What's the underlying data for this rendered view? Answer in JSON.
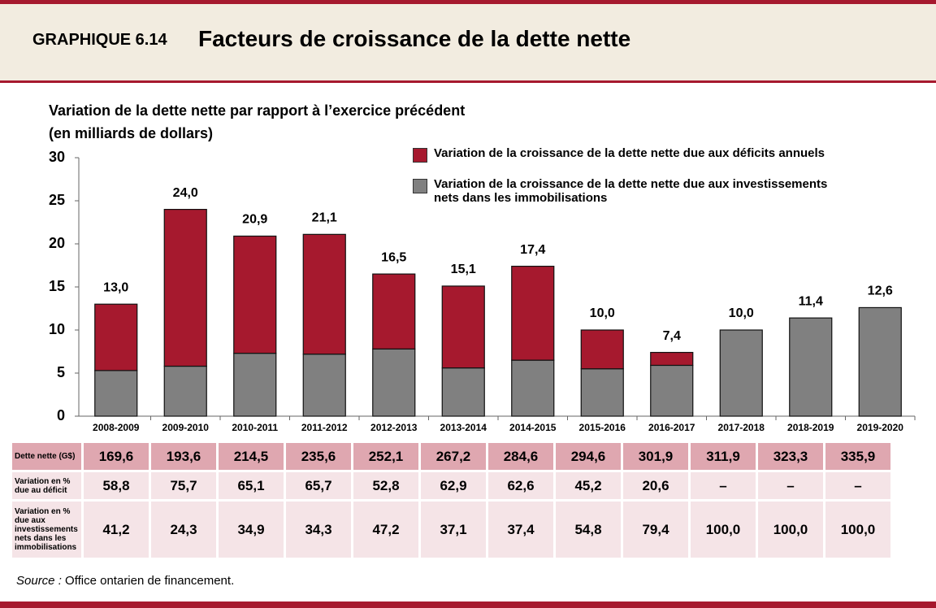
{
  "header": {
    "label": "GRAPHIQUE 6.14",
    "title": "Facteurs de croissance de la dette nette"
  },
  "chart_data": {
    "type": "stacked-bar",
    "y_title": [
      "Variation de la dette nette par rapport à l’exercice précédent",
      "(en milliards de dollars)"
    ],
    "categories": [
      "2008-2009",
      "2009-2010",
      "2010-2011",
      "2011-2012",
      "2012-2013",
      "2013-2014",
      "2014-2015",
      "2015-2016",
      "2016-2017",
      "2017-2018",
      "2018-2019",
      "2019-2020"
    ],
    "series": [
      {
        "name": "Variation de la croissance de la dette nette due aux déficits annuels",
        "color": "#a6192e",
        "values": [
          7.7,
          18.2,
          13.6,
          13.9,
          8.7,
          9.5,
          10.9,
          4.5,
          1.5,
          null,
          null,
          null
        ]
      },
      {
        "name": "Variation de la croissance de la dette nette due aux investissements nets dans les immobilisations",
        "color": "#808080",
        "values": [
          5.3,
          5.8,
          7.3,
          7.2,
          7.8,
          5.6,
          6.5,
          5.5,
          5.9,
          10.0,
          11.4,
          12.6
        ]
      }
    ],
    "totals": {
      "values": [
        13.0,
        24.0,
        20.9,
        21.1,
        16.5,
        15.1,
        17.4,
        10.0,
        7.4,
        10.0,
        11.4,
        12.6
      ],
      "value_labels": [
        "13,0",
        "24,0",
        "20,9",
        "21,1",
        "16,5",
        "15,1",
        "17,4",
        "10,0",
        "7,4",
        "10,0",
        "11,4",
        "12,6"
      ]
    },
    "ylim": [
      0,
      30
    ],
    "yticks": [
      0,
      5,
      10,
      15,
      20,
      25,
      30
    ],
    "grid": false,
    "table": {
      "rows": [
        {
          "label": "Dette nette (G$)",
          "cells": [
            "169,6",
            "193,6",
            "214,5",
            "235,6",
            "252,1",
            "267,2",
            "284,6",
            "294,6",
            "301,9",
            "311,9",
            "323,3",
            "335,9"
          ]
        },
        {
          "label": "Variation en % due au déficit",
          "cells": [
            "58,8",
            "75,7",
            "65,1",
            "65,7",
            "52,8",
            "62,9",
            "62,6",
            "45,2",
            "20,6",
            "–",
            "–",
            "–"
          ]
        },
        {
          "label": "Variation en % due aux investissements nets dans les immobilisations",
          "cells": [
            "41,2",
            "24,3",
            "34,9",
            "34,3",
            "47,2",
            "37,1",
            "37,4",
            "54,8",
            "79,4",
            "100,0",
            "100,0",
            "100,0"
          ]
        }
      ]
    }
  },
  "footer": {
    "source_label": "Source :",
    "source": "Office  ontarien de financement."
  }
}
